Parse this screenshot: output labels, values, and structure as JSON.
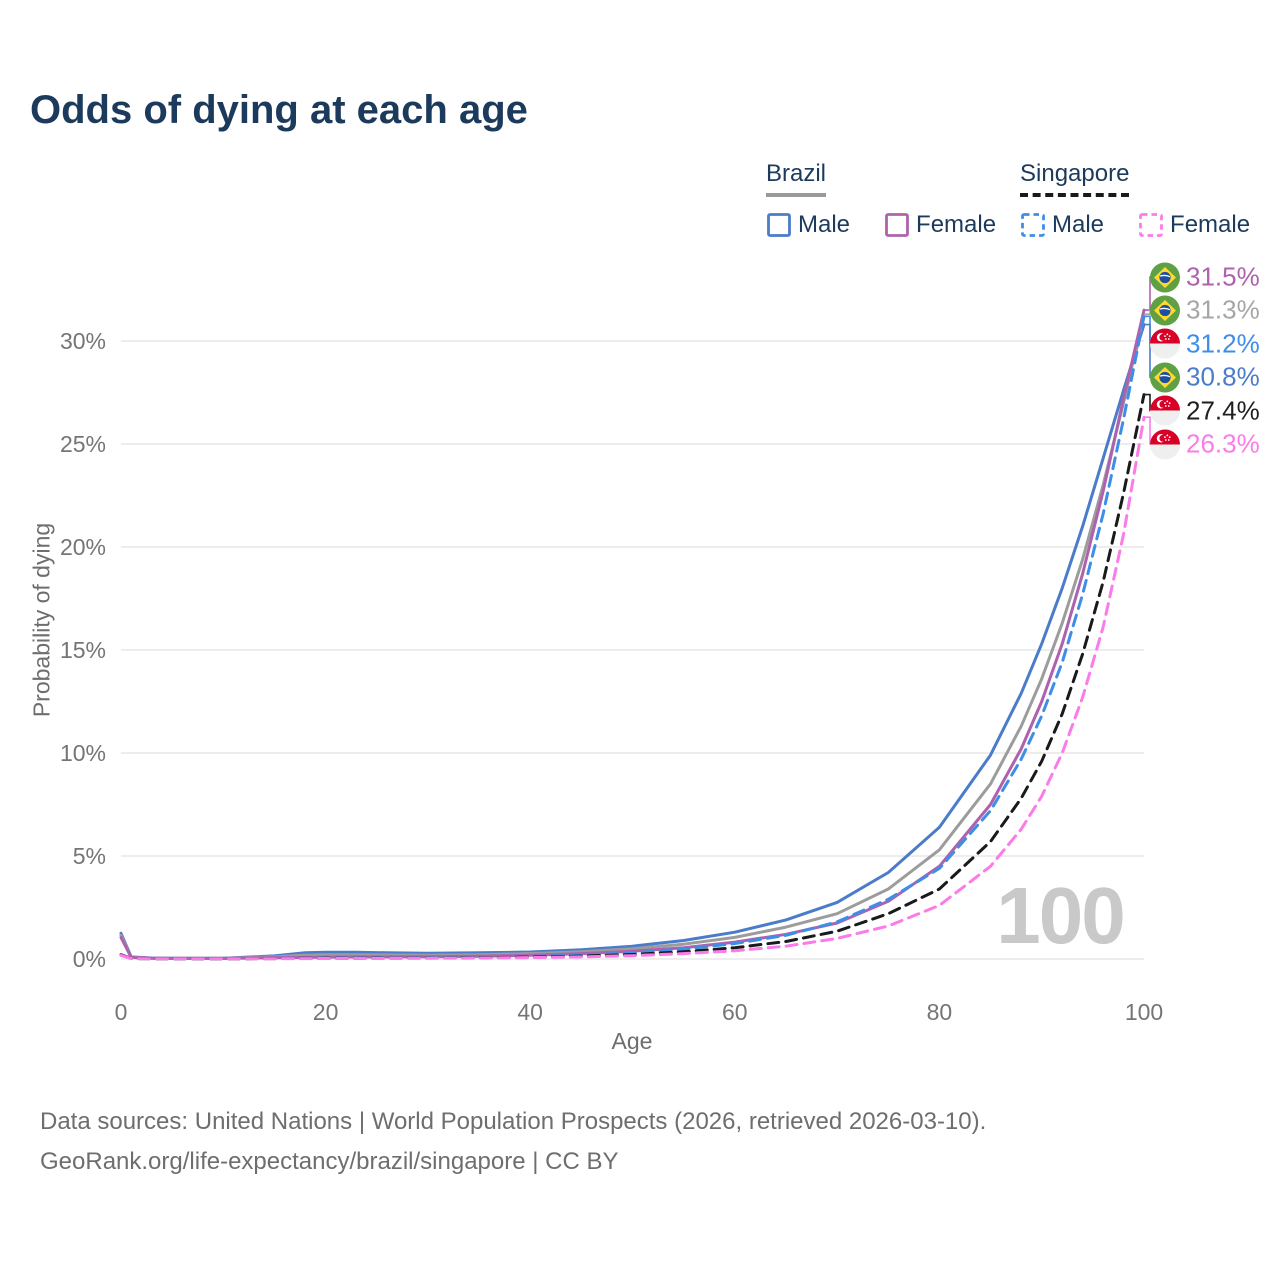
{
  "header": {
    "title": "Odds of dying at each age"
  },
  "legend": {
    "groups": [
      {
        "label": "Brazil",
        "line_style": "solid",
        "line_color": "#9a9a9a",
        "items": [
          {
            "label": "Male",
            "color": "#4A7CC9",
            "dash": false
          },
          {
            "label": "Female",
            "color": "#AE62AE",
            "dash": false
          }
        ]
      },
      {
        "label": "Singapore",
        "line_style": "dashed",
        "line_color": "#1a1a1a",
        "items": [
          {
            "label": "Male",
            "color": "#3E8EE8",
            "dash": true
          },
          {
            "label": "Female",
            "color": "#FB7BE8",
            "dash": true
          }
        ]
      }
    ]
  },
  "chart_data": {
    "type": "line",
    "title": "Odds of dying at each age",
    "xlabel": "Age",
    "ylabel": "Probability of dying",
    "xlim": [
      0,
      100
    ],
    "ylim_percent": [
      0,
      30
    ],
    "grid": "horizontal",
    "legend_position": "top-right",
    "watermark": "100",
    "xticks": [
      {
        "v": 0,
        "label": "0"
      },
      {
        "v": 20,
        "label": "20"
      },
      {
        "v": 40,
        "label": "40"
      },
      {
        "v": 60,
        "label": "60"
      },
      {
        "v": 80,
        "label": "80"
      },
      {
        "v": 100,
        "label": "100"
      }
    ],
    "yticks": [
      {
        "v": 0,
        "label": "0%"
      },
      {
        "v": 5,
        "label": "5%"
      },
      {
        "v": 10,
        "label": "10%"
      },
      {
        "v": 15,
        "label": "15%"
      },
      {
        "v": 20,
        "label": "20%"
      },
      {
        "v": 25,
        "label": "25%"
      },
      {
        "v": 30,
        "label": "30%"
      }
    ],
    "x": [
      0,
      1,
      3,
      5,
      10,
      15,
      18,
      20,
      23,
      26,
      30,
      35,
      40,
      45,
      50,
      55,
      60,
      65,
      70,
      75,
      80,
      85,
      88,
      90,
      92,
      94,
      96,
      98,
      100
    ],
    "series": [
      {
        "name": "brazil-male",
        "country": "Brazil",
        "sex": "Male",
        "color": "#4A7CC9",
        "dash": false,
        "values": [
          1.25,
          0.1,
          0.05,
          0.04,
          0.04,
          0.15,
          0.3,
          0.33,
          0.33,
          0.3,
          0.28,
          0.3,
          0.34,
          0.45,
          0.62,
          0.9,
          1.3,
          1.9,
          2.75,
          4.2,
          6.4,
          9.9,
          12.9,
          15.3,
          18.0,
          21.0,
          24.3,
          27.6,
          30.8
        ]
      },
      {
        "name": "brazil-both",
        "country": "Brazil",
        "sex": "Both",
        "color": "#9C9C9C",
        "dash": false,
        "values": [
          1.15,
          0.09,
          0.04,
          0.035,
          0.035,
          0.1,
          0.19,
          0.21,
          0.21,
          0.2,
          0.19,
          0.21,
          0.26,
          0.35,
          0.5,
          0.72,
          1.05,
          1.55,
          2.2,
          3.4,
          5.3,
          8.5,
          11.3,
          13.6,
          16.3,
          19.4,
          23.0,
          27.0,
          31.3
        ]
      },
      {
        "name": "brazil-female",
        "country": "Brazil",
        "sex": "Female",
        "color": "#AE62AE",
        "dash": false,
        "values": [
          1.05,
          0.08,
          0.04,
          0.03,
          0.03,
          0.06,
          0.08,
          0.09,
          0.1,
          0.1,
          0.11,
          0.13,
          0.18,
          0.26,
          0.38,
          0.55,
          0.82,
          1.2,
          1.75,
          2.8,
          4.5,
          7.5,
          10.2,
          12.5,
          15.3,
          18.7,
          22.7,
          27.2,
          31.5
        ]
      },
      {
        "name": "singapore-male",
        "country": "Singapore",
        "sex": "Male",
        "color": "#3E8EE8",
        "dash": true,
        "values": [
          0.22,
          0.03,
          0.02,
          0.015,
          0.015,
          0.03,
          0.04,
          0.05,
          0.06,
          0.06,
          0.07,
          0.09,
          0.12,
          0.19,
          0.3,
          0.48,
          0.75,
          1.15,
          1.8,
          2.9,
          4.4,
          7.2,
          9.7,
          11.8,
          14.4,
          17.7,
          21.6,
          26.2,
          31.2
        ]
      },
      {
        "name": "singapore-both",
        "country": "Singapore",
        "sex": "Both",
        "color": "#1A1A1A",
        "dash": true,
        "values": [
          0.2,
          0.025,
          0.015,
          0.012,
          0.012,
          0.02,
          0.03,
          0.035,
          0.04,
          0.045,
          0.05,
          0.065,
          0.09,
          0.14,
          0.22,
          0.35,
          0.55,
          0.85,
          1.35,
          2.2,
          3.4,
          5.7,
          7.8,
          9.6,
          11.9,
          14.8,
          18.3,
          22.6,
          27.4
        ]
      },
      {
        "name": "singapore-female",
        "country": "Singapore",
        "sex": "Female",
        "color": "#FB7BE8",
        "dash": true,
        "values": [
          0.18,
          0.02,
          0.012,
          0.01,
          0.01,
          0.015,
          0.02,
          0.025,
          0.03,
          0.035,
          0.04,
          0.05,
          0.07,
          0.1,
          0.16,
          0.26,
          0.4,
          0.62,
          1.0,
          1.6,
          2.6,
          4.5,
          6.3,
          7.9,
          10.0,
          12.7,
          16.1,
          20.6,
          26.3
        ]
      }
    ],
    "end_labels": [
      {
        "flag": "br",
        "text": "31.5%",
        "value": 31.5,
        "color": "#AE62AE",
        "series": "brazil-female"
      },
      {
        "flag": "br",
        "text": "31.3%",
        "value": 31.3,
        "color": "#A6A6A6",
        "series": "brazil-both"
      },
      {
        "flag": "sg",
        "text": "31.2%",
        "value": 31.2,
        "color": "#3E8EE8",
        "series": "singapore-male"
      },
      {
        "flag": "br",
        "text": "30.8%",
        "value": 30.8,
        "color": "#4A7CC9",
        "series": "brazil-male"
      },
      {
        "flag": "sg",
        "text": "27.4%",
        "value": 27.4,
        "color": "#1F1F1F",
        "series": "singapore-both"
      },
      {
        "flag": "sg",
        "text": "26.3%",
        "value": 26.3,
        "color": "#FB7BE8",
        "series": "singapore-female"
      }
    ]
  },
  "footer": {
    "line1": "Data sources: United Nations | World Population Prospects (2026, retrieved 2026-03-10).",
    "line2": "GeoRank.org/life-expectancy/brazil/singapore | CC BY"
  }
}
